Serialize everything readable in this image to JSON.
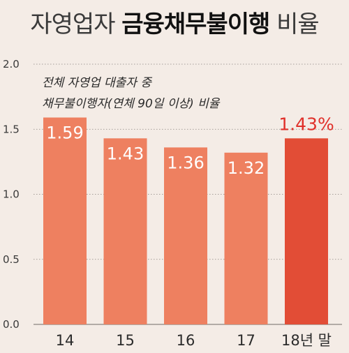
{
  "header": {
    "title_prefix": "자영업자",
    "title_bold": "금융채무불이행",
    "title_suffix": "비율"
  },
  "chart_data": {
    "type": "bar",
    "title": "자영업자 금융채무불이행 비율",
    "subtitle_lines": [
      "전체 자영업 대출자 중",
      "채무불이행자(연체 90일 이상) 비율"
    ],
    "categories": [
      "14",
      "15",
      "16",
      "17",
      "18년 말"
    ],
    "values": [
      1.59,
      1.43,
      1.36,
      1.32,
      1.43
    ],
    "value_labels": [
      "1.59",
      "1.43",
      "1.36",
      "1.32",
      "1.43%"
    ],
    "highlight_index": 4,
    "ylim": [
      0,
      2.0
    ],
    "yticks": [
      "0.0",
      "0.5",
      "1.0",
      "1.5",
      "2.0"
    ],
    "grid": true,
    "colors": {
      "bar": "#ee8060",
      "bar_highlight": "#e24d36",
      "highlight_label": "#e0302a",
      "label": "#ffffff",
      "background": "#f4ece6",
      "grid": "#8a8480"
    }
  }
}
